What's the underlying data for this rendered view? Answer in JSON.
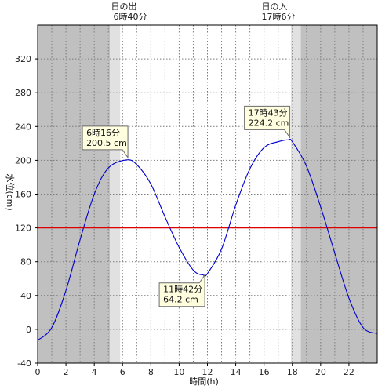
{
  "chart_data": {
    "type": "line",
    "xlabel": "時間(h)",
    "ylabel": "水位(cm)",
    "xlim": [
      0,
      24
    ],
    "ylim": [
      -40,
      360
    ],
    "x_ticks": [
      0,
      2,
      4,
      6,
      8,
      10,
      12,
      14,
      16,
      18,
      20,
      22
    ],
    "y_ticks": [
      -40,
      0,
      40,
      80,
      120,
      160,
      200,
      240,
      280,
      320
    ],
    "grid": true,
    "reference_line": {
      "value": 120,
      "color": "#dd0000"
    },
    "line_color": "#0000cc",
    "sunrise": {
      "title": "日の出",
      "time": "6時40分",
      "hour": 6.667
    },
    "sunset": {
      "title": "日の入",
      "time": "17時6分",
      "hour": 17.1
    },
    "twilight": {
      "dark_until": 5.1,
      "light_until": 5.83,
      "light_from": 17.9,
      "dark_from": 18.6
    },
    "annotations": [
      {
        "time": "6時16分",
        "value": "200.5 cm",
        "x": 6.267,
        "y": 200.5,
        "position": "above"
      },
      {
        "time": "11時42分",
        "value": "64.2 cm",
        "x": 11.7,
        "y": 64.2,
        "position": "below"
      },
      {
        "time": "17時43分",
        "value": "224.2 cm",
        "x": 17.717,
        "y": 224.2,
        "position": "above"
      }
    ],
    "series": [
      {
        "x": [
          0,
          1,
          2,
          3,
          4,
          5,
          6.267,
          7,
          8,
          9,
          10,
          11,
          11.7,
          12,
          13,
          14,
          15,
          16,
          17,
          17.717,
          18,
          19,
          20,
          21,
          22,
          23,
          24
        ],
        "y": [
          -13,
          2,
          46,
          106,
          160,
          191,
          200.5,
          195,
          172,
          133,
          97,
          70,
          64.2,
          66,
          95,
          147,
          190,
          215,
          222,
          224.2,
          222,
          193,
          145,
          90,
          37,
          2,
          -5
        ]
      }
    ]
  }
}
